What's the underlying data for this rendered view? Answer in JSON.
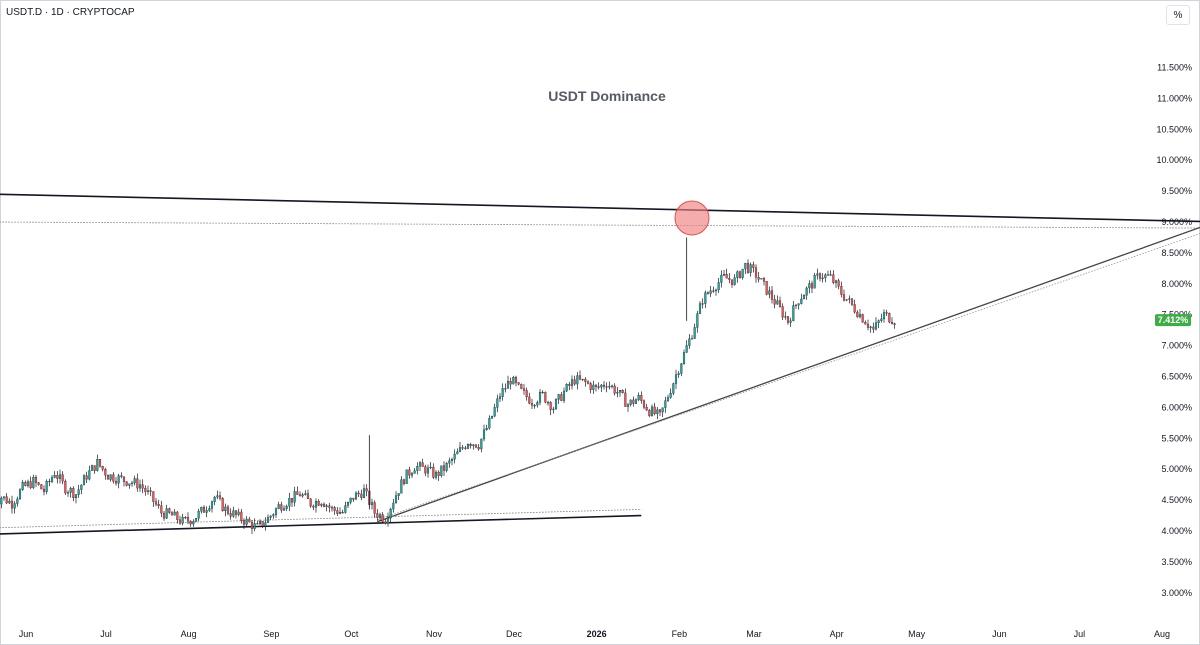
{
  "header": {
    "symbol": "USDT.D · 1D · CRYPTOCAP"
  },
  "toolbar": {
    "scale_label": "%"
  },
  "colors": {
    "up": "#26a69a",
    "down": "#ef5350",
    "wick": "#131722",
    "last_price_bg": "#3fad46",
    "highlight": "#f08080"
  },
  "chart_data": {
    "type": "candlestick",
    "title": "USDT Dominance",
    "y_unit": "%",
    "ylim": [
      2.75,
      11.75
    ],
    "y_ticks": [
      "11.500%",
      "11.000%",
      "10.500%",
      "10.000%",
      "9.500%",
      "9.000%",
      "8.500%",
      "8.000%",
      "7.500%",
      "7.000%",
      "6.500%",
      "6.000%",
      "5.500%",
      "5.000%",
      "4.500%",
      "4.000%",
      "3.500%",
      "3.000%"
    ],
    "y_tick_values": [
      11.5,
      11.0,
      10.5,
      10.0,
      9.5,
      9.0,
      8.5,
      8.0,
      7.5,
      7.0,
      6.5,
      6.0,
      5.5,
      5.0,
      4.5,
      4.0,
      3.5,
      3.0
    ],
    "x_ticks": [
      "Jun",
      "Jul",
      "Aug",
      "Sep",
      "Oct",
      "Nov",
      "Dec",
      "2026",
      "Feb",
      "Mar",
      "Apr",
      "May",
      "Jun",
      "Jul",
      "Aug"
    ],
    "x_tick_dates": [
      "2025-06-01",
      "2025-07-01",
      "2025-08-01",
      "2025-09-01",
      "2025-10-01",
      "2025-11-01",
      "2025-12-01",
      "2026-01-01",
      "2026-02-01",
      "2026-03-01",
      "2026-04-01",
      "2026-05-01",
      "2026-06-01",
      "2026-07-01",
      "2026-08-01"
    ],
    "last_price": "7.412%",
    "last_price_value": 7.412,
    "series": [
      {
        "values": [
          [
            "2025-05-22",
            4.4
          ],
          [
            "2025-05-26",
            4.55
          ],
          [
            "2025-05-30",
            4.45
          ],
          [
            "2025-06-03",
            4.7
          ],
          [
            "2025-06-07",
            4.8
          ],
          [
            "2025-06-11",
            4.65
          ],
          [
            "2025-06-15",
            4.95
          ],
          [
            "2025-06-19",
            4.7
          ],
          [
            "2025-06-23",
            4.6
          ],
          [
            "2025-06-27",
            4.9
          ],
          [
            "2025-07-01",
            5.1
          ],
          [
            "2025-07-05",
            4.9
          ],
          [
            "2025-07-09",
            4.85
          ],
          [
            "2025-07-13",
            4.8
          ],
          [
            "2025-07-17",
            4.75
          ],
          [
            "2025-07-21",
            4.55
          ],
          [
            "2025-07-25",
            4.3
          ],
          [
            "2025-07-29",
            4.25
          ],
          [
            "2025-08-02",
            4.15
          ],
          [
            "2025-08-06",
            4.2
          ],
          [
            "2025-08-10",
            4.35
          ],
          [
            "2025-08-14",
            4.55
          ],
          [
            "2025-08-18",
            4.35
          ],
          [
            "2025-08-22",
            4.25
          ],
          [
            "2025-08-26",
            4.15
          ],
          [
            "2025-08-30",
            4.05
          ],
          [
            "2025-09-03",
            4.2
          ],
          [
            "2025-09-07",
            4.4
          ],
          [
            "2025-09-11",
            4.5
          ],
          [
            "2025-09-15",
            4.6
          ],
          [
            "2025-09-19",
            4.45
          ],
          [
            "2025-09-23",
            4.5
          ],
          [
            "2025-09-27",
            4.35
          ],
          [
            "2025-10-01",
            4.3
          ],
          [
            "2025-10-05",
            4.55
          ],
          [
            "2025-10-09",
            4.65
          ],
          [
            "2025-10-13",
            4.3
          ],
          [
            "2025-10-17",
            4.2
          ],
          [
            "2025-10-20",
            4.5
          ],
          [
            "2025-10-24",
            4.85
          ],
          [
            "2025-10-28",
            5.05
          ],
          [
            "2025-11-01",
            5.0
          ],
          [
            "2025-11-05",
            4.9
          ],
          [
            "2025-11-09",
            5.05
          ],
          [
            "2025-11-13",
            5.25
          ],
          [
            "2025-11-17",
            5.45
          ],
          [
            "2025-11-21",
            5.4
          ],
          [
            "2025-11-25",
            5.75
          ],
          [
            "2025-11-29",
            6.2
          ],
          [
            "2025-12-03",
            6.45
          ],
          [
            "2025-12-07",
            6.25
          ],
          [
            "2025-12-11",
            6.1
          ],
          [
            "2025-12-15",
            6.2
          ],
          [
            "2025-12-19",
            6.0
          ],
          [
            "2025-12-23",
            6.25
          ],
          [
            "2025-12-27",
            6.45
          ],
          [
            "2025-12-31",
            6.4
          ],
          [
            "2026-01-04",
            6.3
          ],
          [
            "2026-01-08",
            6.4
          ],
          [
            "2026-01-12",
            6.25
          ],
          [
            "2026-01-16",
            6.05
          ],
          [
            "2026-01-20",
            6.15
          ],
          [
            "2026-01-24",
            5.95
          ],
          [
            "2026-01-28",
            5.85
          ],
          [
            "2026-02-01",
            6.3
          ],
          [
            "2026-02-05",
            6.75
          ],
          [
            "2026-02-09",
            7.2
          ],
          [
            "2026-02-13",
            7.75
          ],
          [
            "2026-02-17",
            7.95
          ],
          [
            "2026-02-21",
            8.1
          ],
          [
            "2026-02-25",
            8.05
          ],
          [
            "2026-03-01",
            8.3
          ],
          [
            "2026-03-05",
            8.15
          ],
          [
            "2026-03-09",
            7.9
          ],
          [
            "2026-03-13",
            7.65
          ],
          [
            "2026-03-17",
            7.4
          ],
          [
            "2026-03-21",
            7.75
          ],
          [
            "2026-03-25",
            7.95
          ],
          [
            "2026-03-29",
            8.15
          ],
          [
            "2026-04-02",
            8.1
          ],
          [
            "2026-04-06",
            7.85
          ],
          [
            "2026-04-10",
            7.65
          ],
          [
            "2026-04-14",
            7.45
          ],
          [
            "2026-04-18",
            7.25
          ],
          [
            "2026-04-22",
            7.5
          ],
          [
            "2026-04-26",
            7.412
          ]
        ]
      }
    ],
    "annotations": {
      "upper_trendline": [
        [
          "2025-05-22",
          9.45
        ],
        [
          "2026-08-26",
          9.0
        ]
      ],
      "upper_trendline_dotted": [
        [
          "2025-05-22",
          9.0
        ],
        [
          "2026-08-26",
          8.9
        ]
      ],
      "rising_trendline": [
        [
          "2025-10-13",
          4.15
        ],
        [
          "2026-08-20",
          8.95
        ]
      ],
      "lower_trendline": [
        [
          "2025-05-22",
          3.95
        ],
        [
          "2026-01-20",
          4.25
        ]
      ],
      "lower_trendline_dotted": [
        [
          "2025-05-22",
          4.05
        ],
        [
          "2026-01-20",
          4.35
        ]
      ],
      "spike_circle": [
        "2026-02-08",
        9.0
      ]
    }
  }
}
